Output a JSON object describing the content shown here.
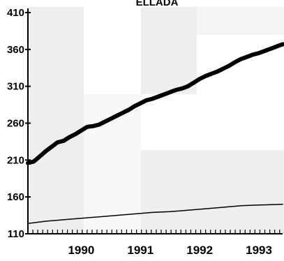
{
  "chart_data": {
    "type": "line",
    "title": "ELLADA",
    "xlabel": "",
    "ylabel": "",
    "x_axis": {
      "start": 1989.6,
      "end": 1993.9,
      "tick_labels": [
        "1990",
        "1991",
        "1992",
        "1993"
      ],
      "tick_values": [
        1990,
        1991,
        1992,
        1993
      ],
      "minor_ticks_per_year": 12
    },
    "y_axis": {
      "range": [
        110,
        410
      ],
      "tick_labels": [
        "410",
        "360",
        "310",
        "260",
        "210",
        "160",
        "110"
      ],
      "tick_values": [
        410,
        360,
        310,
        260,
        210,
        160,
        110
      ]
    },
    "grid": false,
    "legend": "none",
    "series": [
      {
        "color": "#000000",
        "line_weight": "thick",
        "x": [
          1989.6,
          1989.7,
          1989.8,
          1989.9,
          1990.0,
          1990.1,
          1990.2,
          1990.3,
          1990.4,
          1990.5,
          1990.6,
          1990.7,
          1990.8,
          1990.9,
          1991.0,
          1991.1,
          1991.2,
          1991.3,
          1991.4,
          1991.5,
          1991.6,
          1991.7,
          1991.8,
          1991.9,
          1992.0,
          1992.1,
          1992.2,
          1992.3,
          1992.4,
          1992.5,
          1992.6,
          1992.7,
          1992.8,
          1992.9,
          1993.0,
          1993.1,
          1993.2,
          1993.3,
          1993.4,
          1993.5,
          1993.6,
          1993.7,
          1993.8,
          1993.9
        ],
        "values": [
          206,
          208,
          215,
          222,
          228,
          234,
          236,
          241,
          245,
          250,
          255,
          256,
          258,
          262,
          266,
          270,
          274,
          278,
          283,
          287,
          291,
          293,
          296,
          299,
          302,
          305,
          307,
          310,
          315,
          320,
          324,
          327,
          330,
          334,
          338,
          343,
          347,
          350,
          353,
          355,
          358,
          361,
          364,
          367
        ]
      },
      {
        "color": "#000000",
        "line_weight": "thin",
        "x": [
          1989.6,
          1989.9,
          1990.2,
          1990.5,
          1990.8,
          1991.1,
          1991.4,
          1991.7,
          1992.0,
          1992.3,
          1992.6,
          1992.9,
          1993.2,
          1993.5,
          1993.9
        ],
        "values": [
          124,
          127,
          129,
          131,
          133,
          135,
          137,
          139,
          140,
          142,
          144,
          146,
          148,
          149,
          150
        ]
      }
    ]
  }
}
